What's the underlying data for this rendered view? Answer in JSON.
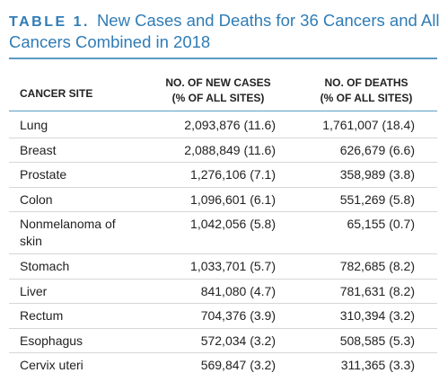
{
  "title": {
    "label": "TABLE 1.",
    "text": "New Cases and Deaths for 36 Cancers and All Cancers Combined in 2018"
  },
  "table": {
    "columns": [
      [
        "CANCER SITE"
      ],
      [
        "NO. OF NEW CASES",
        "(% OF ALL SITES)"
      ],
      [
        "NO. OF DEATHS",
        "(% OF ALL SITES)"
      ]
    ],
    "rows": [
      [
        "Lung",
        "2,093,876 (11.6)",
        "1,761,007 (18.4)"
      ],
      [
        "Breast",
        "2,088,849 (11.6)",
        "626,679 (6.6)"
      ],
      [
        "Prostate",
        "1,276,106 (7.1)",
        "358,989 (3.8)"
      ],
      [
        "Colon",
        "1,096,601 (6.1)",
        "551,269 (5.8)"
      ],
      [
        "Nonmelanoma of skin",
        "1,042,056 (5.8)",
        "65,155 (0.7)"
      ],
      [
        "Stomach",
        "1,033,701 (5.7)",
        "782,685 (8.2)"
      ],
      [
        "Liver",
        "841,080 (4.7)",
        "781,631 (8.2)"
      ],
      [
        "Rectum",
        "704,376 (3.9)",
        "310,394 (3.2)"
      ],
      [
        "Esophagus",
        "572,034 (3.2)",
        "508,585 (5.3)"
      ],
      [
        "Cervix uteri",
        "569,847 (3.2)",
        "311,365 (3.3)"
      ]
    ]
  }
}
